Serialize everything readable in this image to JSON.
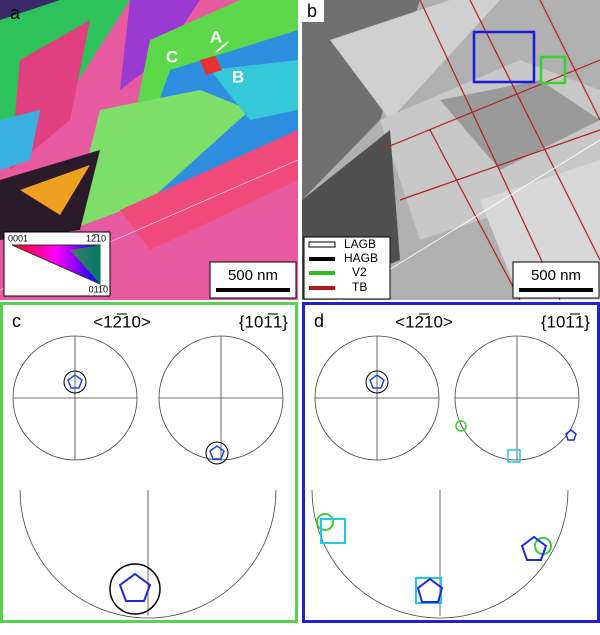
{
  "panels": {
    "a": {
      "label": "a",
      "annotations": [
        "C",
        "A",
        "B"
      ],
      "scale_bar": "500 nm",
      "color_key": [
        "0001",
        "12̅10",
        "011̅0"
      ]
    },
    "b": {
      "label": "b",
      "legend": [
        "LAGB",
        "HAGB",
        "V2",
        "TB"
      ],
      "scale_bar": "500 nm"
    },
    "c": {
      "label": "c",
      "direction": "<12̅10>",
      "plane": "{101̅1}"
    },
    "d": {
      "label": "d",
      "direction": "<12̅10>",
      "plane": "{101̅1}"
    }
  }
}
